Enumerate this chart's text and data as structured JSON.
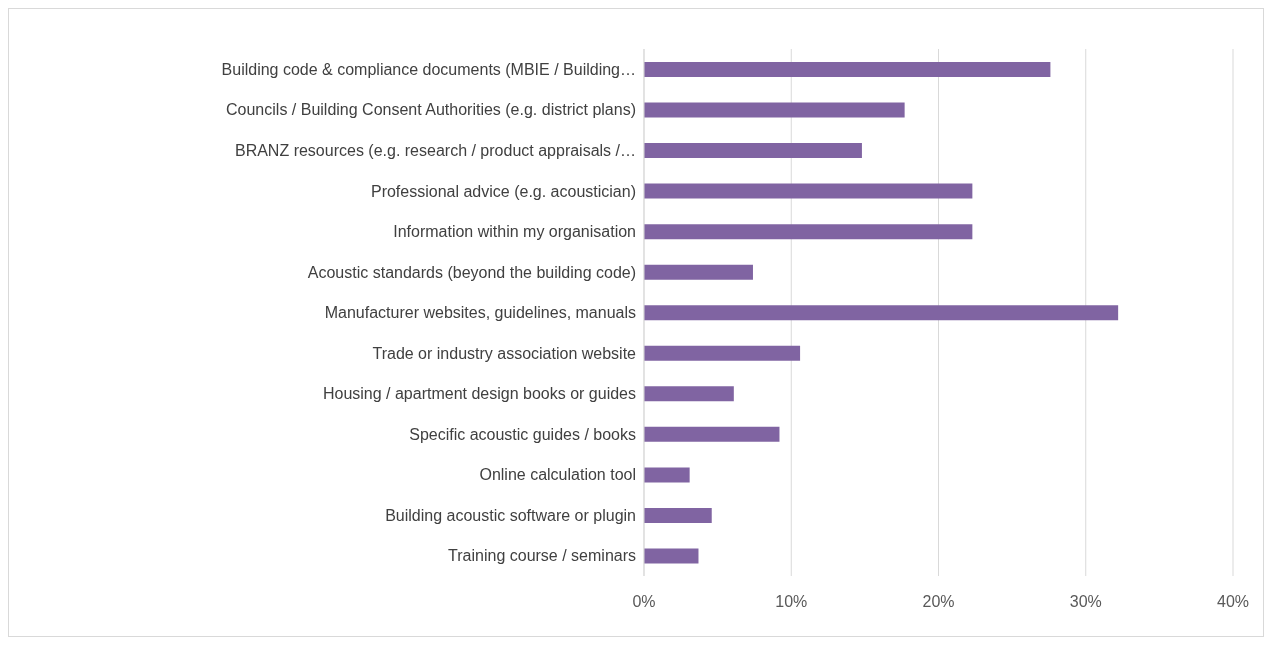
{
  "chart_data": {
    "type": "bar",
    "orientation": "horizontal",
    "categories": [
      "Building code & compliance documents (MBIE / Building…",
      "Councils / Building Consent Authorities (e.g. district plans)",
      "BRANZ resources (e.g. research / product appraisals /…",
      "Professional advice (e.g. acoustician)",
      "Information within my organisation",
      "Acoustic standards (beyond the building code)",
      "Manufacturer websites, guidelines, manuals",
      "Trade or industry association website",
      "Housing / apartment design books or guides",
      "Specific acoustic guides / books",
      "Online calculation tool",
      "Building acoustic software or plugin",
      "Training course / seminars"
    ],
    "values": [
      27.6,
      17.7,
      14.8,
      22.3,
      22.3,
      7.4,
      32.2,
      10.6,
      6.1,
      9.2,
      3.1,
      4.6,
      3.7
    ],
    "color": "#8064a2",
    "xlim": [
      0,
      40
    ],
    "xticks": [
      {
        "value": 0,
        "label": "0%"
      },
      {
        "value": 10,
        "label": "10%"
      },
      {
        "value": 20,
        "label": "20%"
      },
      {
        "value": 30,
        "label": "30%"
      },
      {
        "value": 40,
        "label": "40%"
      }
    ],
    "grid": "x",
    "legend": false
  }
}
